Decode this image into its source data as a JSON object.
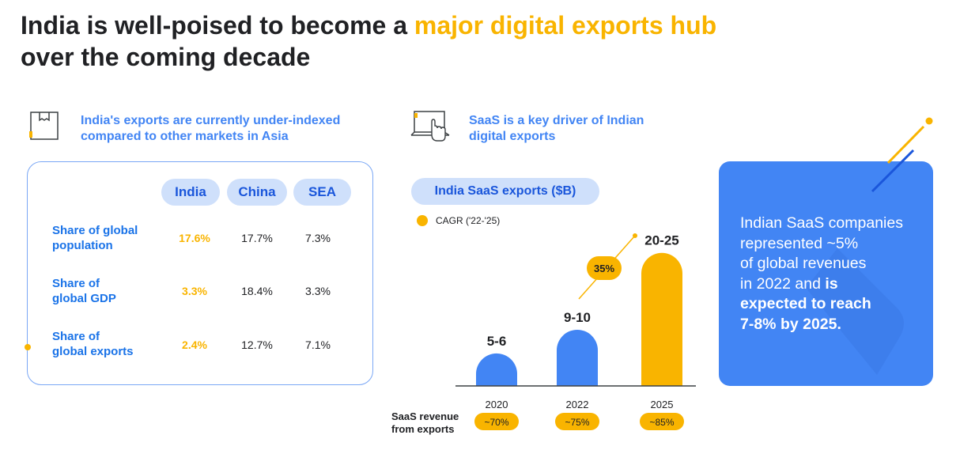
{
  "title": {
    "part1": "India is well-poised to become a ",
    "highlight": "major digital exports hub",
    "part2": "over the coming decade"
  },
  "left_section": {
    "icon": "box-icon",
    "heading_line1": "India's exports are currently under-indexed",
    "heading_line2": "compared to other markets in Asia",
    "columns": [
      "India",
      "China",
      "SEA"
    ],
    "rows": [
      {
        "label_line1": "Share of global",
        "label_line2": "population",
        "values": [
          "17.6%",
          "17.7%",
          "7.3%"
        ]
      },
      {
        "label_line1": "Share of",
        "label_line2": "global GDP",
        "values": [
          "3.3%",
          "18.4%",
          "3.3%"
        ]
      },
      {
        "label_line1": "Share of",
        "label_line2": "global exports",
        "values": [
          "2.4%",
          "12.7%",
          "7.1%"
        ]
      }
    ]
  },
  "middle_section": {
    "icon": "laptop-cursor-icon",
    "heading_line1": "SaaS is a key driver of Indian",
    "heading_line2": "digital exports",
    "chart_title": "India SaaS exports ($B)",
    "legend": "CAGR ('22-'25)",
    "row_label_line1": "SaaS revenue",
    "row_label_line2": "from exports"
  },
  "chart_data": {
    "type": "bar",
    "title": "India SaaS exports ($B)",
    "categories": [
      "2020",
      "2022",
      "2025"
    ],
    "values": [
      5.5,
      9.5,
      22.5
    ],
    "value_labels": [
      "5-6",
      "9-10",
      "20-25"
    ],
    "bar_colors": [
      "#4285F4",
      "#4285F4",
      "#F9B400"
    ],
    "cagr_label": "35%",
    "export_shares": [
      "~70%",
      "~75%",
      "~85%"
    ],
    "ylim": [
      0,
      23
    ],
    "colors": {
      "blue": "#4285F4",
      "yellow": "#F9B400"
    }
  },
  "right_card": {
    "line1": "Indian SaaS companies",
    "line2": "represented ~5%",
    "line3": "of global revenues",
    "line4_normal": "in 2022 and ",
    "line4_bold": "is",
    "line5": "expected to reach",
    "line6": "7-8% by 2025."
  }
}
